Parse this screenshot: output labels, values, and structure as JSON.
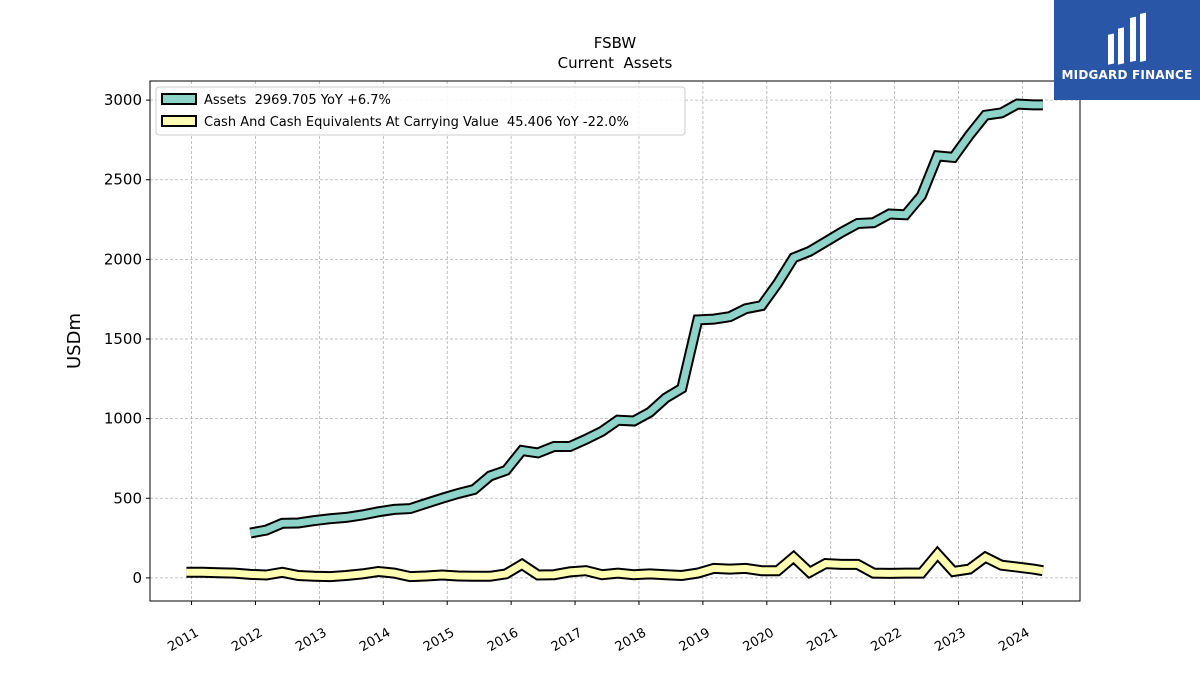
{
  "chart_data": {
    "type": "line",
    "title": "FSBW",
    "subtitle": "Current  Assets",
    "ylabel": "USDm",
    "xlabel": "",
    "xlim": [
      2010.35,
      2024.9
    ],
    "ylim": [
      -145,
      3120
    ],
    "yticks": [
      0,
      500,
      1000,
      1500,
      2000,
      2500,
      3000
    ],
    "xticks": [
      2011,
      2012,
      2013,
      2014,
      2015,
      2016,
      2017,
      2018,
      2019,
      2020,
      2021,
      2022,
      2023,
      2024
    ],
    "xtick_labels": [
      "2011",
      "2012",
      "2013",
      "2014",
      "2015",
      "2016",
      "2017",
      "2018",
      "2019",
      "2020",
      "2021",
      "2022",
      "2023",
      "2024"
    ],
    "grid": true,
    "legend_position": "top-left",
    "series": [
      {
        "name": "Assets  2969.705 YoY +6.7%",
        "color": "#8dd3c7",
        "points": [
          [
            2011.92,
            282
          ],
          [
            2012.17,
            300
          ],
          [
            2012.42,
            343
          ],
          [
            2012.67,
            345
          ],
          [
            2012.92,
            360
          ],
          [
            2013.17,
            372
          ],
          [
            2013.42,
            380
          ],
          [
            2013.67,
            395
          ],
          [
            2013.92,
            415
          ],
          [
            2014.17,
            430
          ],
          [
            2014.42,
            435
          ],
          [
            2014.67,
            468
          ],
          [
            2014.92,
            500
          ],
          [
            2015.17,
            530
          ],
          [
            2015.42,
            555
          ],
          [
            2015.67,
            640
          ],
          [
            2015.92,
            675
          ],
          [
            2016.17,
            800
          ],
          [
            2016.42,
            785
          ],
          [
            2016.67,
            825
          ],
          [
            2016.92,
            825
          ],
          [
            2017.17,
            870
          ],
          [
            2017.42,
            920
          ],
          [
            2017.67,
            990
          ],
          [
            2017.92,
            985
          ],
          [
            2018.17,
            1040
          ],
          [
            2018.42,
            1130
          ],
          [
            2018.67,
            1190
          ],
          [
            2018.92,
            1620
          ],
          [
            2019.17,
            1625
          ],
          [
            2019.42,
            1640
          ],
          [
            2019.67,
            1690
          ],
          [
            2019.92,
            1710
          ],
          [
            2020.17,
            1850
          ],
          [
            2020.42,
            2010
          ],
          [
            2020.67,
            2050
          ],
          [
            2020.92,
            2110
          ],
          [
            2021.17,
            2170
          ],
          [
            2021.42,
            2225
          ],
          [
            2021.67,
            2230
          ],
          [
            2021.92,
            2285
          ],
          [
            2022.17,
            2280
          ],
          [
            2022.42,
            2400
          ],
          [
            2022.67,
            2650
          ],
          [
            2022.92,
            2640
          ],
          [
            2023.17,
            2780
          ],
          [
            2023.42,
            2905
          ],
          [
            2023.67,
            2920
          ],
          [
            2023.92,
            2975
          ],
          [
            2024.17,
            2970
          ],
          [
            2024.32,
            2970
          ]
        ]
      },
      {
        "name": "Cash And Cash Equivalents At Carrying Value  45.406 YoY -22.0%",
        "color": "#ffffb3",
        "points": [
          [
            2010.92,
            35
          ],
          [
            2011.17,
            35
          ],
          [
            2011.42,
            32
          ],
          [
            2011.67,
            30
          ],
          [
            2011.92,
            22
          ],
          [
            2012.17,
            18
          ],
          [
            2012.42,
            35
          ],
          [
            2012.67,
            15
          ],
          [
            2012.92,
            10
          ],
          [
            2013.17,
            8
          ],
          [
            2013.42,
            15
          ],
          [
            2013.67,
            25
          ],
          [
            2013.92,
            40
          ],
          [
            2014.17,
            30
          ],
          [
            2014.42,
            8
          ],
          [
            2014.67,
            12
          ],
          [
            2014.92,
            18
          ],
          [
            2015.17,
            12
          ],
          [
            2015.42,
            10
          ],
          [
            2015.67,
            10
          ],
          [
            2015.92,
            25
          ],
          [
            2016.17,
            85
          ],
          [
            2016.42,
            18
          ],
          [
            2016.67,
            20
          ],
          [
            2016.92,
            38
          ],
          [
            2017.17,
            45
          ],
          [
            2017.42,
            20
          ],
          [
            2017.67,
            30
          ],
          [
            2017.92,
            20
          ],
          [
            2018.17,
            25
          ],
          [
            2018.42,
            20
          ],
          [
            2018.67,
            15
          ],
          [
            2018.92,
            30
          ],
          [
            2019.17,
            60
          ],
          [
            2019.42,
            55
          ],
          [
            2019.67,
            60
          ],
          [
            2019.92,
            45
          ],
          [
            2020.17,
            45
          ],
          [
            2020.42,
            130
          ],
          [
            2020.67,
            35
          ],
          [
            2020.92,
            90
          ],
          [
            2021.17,
            85
          ],
          [
            2021.42,
            85
          ],
          [
            2021.67,
            30
          ],
          [
            2021.92,
            28
          ],
          [
            2022.17,
            30
          ],
          [
            2022.42,
            30
          ],
          [
            2022.67,
            150
          ],
          [
            2022.92,
            40
          ],
          [
            2023.17,
            55
          ],
          [
            2023.42,
            130
          ],
          [
            2023.67,
            80
          ],
          [
            2023.92,
            68
          ],
          [
            2024.17,
            55
          ],
          [
            2024.32,
            45
          ]
        ]
      }
    ]
  },
  "logo": {
    "name": "MIDGARD FINANCE",
    "background": "#2a56a8"
  }
}
